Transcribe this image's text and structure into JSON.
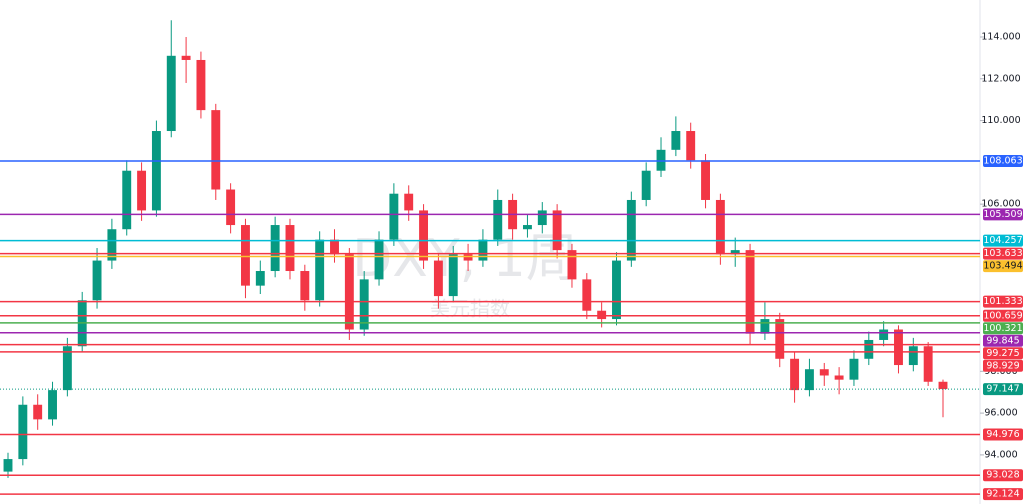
{
  "chart_data": {
    "type": "candlestick",
    "watermark": {
      "title": "DXY, 1周",
      "subtitle": "美元指数"
    },
    "up_color": "#089981",
    "down_color": "#f23645",
    "ylim": [
      91.65,
      115.77
    ],
    "yticks": [
      {
        "value": 114,
        "label": "114.000"
      },
      {
        "value": 112,
        "label": "112.000"
      },
      {
        "value": 110,
        "label": "110.000"
      },
      {
        "value": 106,
        "label": "106.000"
      },
      {
        "value": 98,
        "label": "98.000"
      },
      {
        "value": 96,
        "label": "96.000"
      },
      {
        "value": 94,
        "label": "94.000"
      }
    ],
    "open": [
      93.2,
      93.8,
      96.4,
      95.7,
      97.1,
      99.2,
      101.4,
      103.3,
      104.8,
      107.6,
      105.7,
      109.5,
      113.1,
      112.9,
      110.5,
      106.7,
      105.0,
      102.1,
      102.8,
      105.0,
      102.8,
      101.4,
      104.3,
      103.6,
      100.0,
      102.4,
      104.3,
      106.5,
      105.7,
      103.3,
      101.6,
      103.6,
      103.3,
      104.3,
      106.2,
      104.8,
      105.0,
      105.7,
      103.8,
      102.4,
      100.9,
      100.5,
      103.3,
      106.2,
      107.6,
      108.6,
      109.5,
      108.1,
      106.2,
      103.6,
      103.8,
      99.8,
      100.5,
      98.6,
      97.1,
      98.1,
      97.8,
      97.6,
      98.6,
      99.5,
      100.0,
      98.3,
      99.2,
      97.5
    ],
    "high": [
      94.1,
      96.8,
      96.9,
      97.5,
      99.6,
      101.8,
      103.9,
      105.3,
      108.1,
      108.0,
      110.0,
      114.8,
      114.0,
      113.3,
      110.8,
      107.0,
      105.3,
      103.3,
      105.4,
      105.3,
      103.1,
      104.7,
      104.8,
      103.9,
      102.8,
      104.7,
      107.0,
      106.9,
      106.0,
      103.6,
      104.0,
      104.1,
      104.8,
      106.7,
      106.5,
      105.5,
      106.1,
      106.0,
      104.1,
      102.7,
      101.3,
      103.7,
      106.6,
      108.0,
      109.2,
      110.2,
      109.9,
      108.4,
      106.5,
      104.4,
      104.1,
      101.3,
      100.8,
      98.9,
      98.6,
      98.4,
      98.2,
      99.0,
      99.9,
      100.4,
      100.2,
      99.6,
      99.4,
      97.6
    ],
    "low": [
      92.9,
      93.5,
      95.2,
      95.4,
      96.8,
      98.9,
      101.0,
      102.9,
      104.5,
      105.2,
      105.4,
      109.2,
      111.8,
      110.1,
      106.2,
      104.6,
      101.5,
      101.7,
      102.5,
      102.4,
      100.9,
      101.1,
      103.2,
      99.5,
      99.7,
      102.1,
      104.0,
      105.2,
      102.9,
      101.0,
      101.3,
      102.8,
      103.0,
      104.0,
      104.3,
      104.4,
      104.6,
      103.4,
      102.0,
      100.5,
      100.1,
      100.2,
      103.0,
      105.9,
      107.3,
      108.3,
      107.7,
      105.8,
      103.1,
      103.0,
      99.3,
      99.5,
      98.2,
      96.5,
      96.8,
      97.3,
      96.9,
      97.3,
      98.3,
      99.2,
      97.9,
      98.0,
      97.3,
      95.8
    ],
    "close": [
      93.8,
      96.4,
      95.7,
      97.1,
      99.2,
      101.4,
      103.3,
      104.8,
      107.6,
      105.7,
      109.5,
      113.1,
      112.9,
      110.5,
      106.7,
      105.0,
      102.1,
      102.8,
      105.0,
      102.8,
      101.4,
      104.3,
      103.6,
      100.0,
      102.4,
      104.3,
      106.5,
      105.7,
      103.3,
      101.6,
      103.6,
      103.3,
      104.3,
      106.2,
      104.8,
      105.0,
      105.7,
      103.8,
      102.4,
      100.9,
      100.5,
      103.3,
      106.2,
      107.6,
      108.6,
      109.5,
      108.1,
      106.2,
      103.6,
      103.8,
      99.8,
      100.5,
      98.6,
      97.1,
      98.1,
      97.8,
      97.6,
      98.6,
      99.5,
      100.0,
      98.3,
      99.2,
      97.5,
      97.15
    ],
    "levels": [
      {
        "value": 108.063,
        "color": "#2962ff"
      },
      {
        "value": 105.509,
        "color": "#9c27b0"
      },
      {
        "value": 104.257,
        "color": "#00bcd4"
      },
      {
        "value": 103.633,
        "color": "#f23645"
      },
      {
        "value": 103.494,
        "color": "#fbc02d"
      },
      {
        "value": 101.333,
        "color": "#f23645"
      },
      {
        "value": 100.659,
        "color": "#f23645"
      },
      {
        "value": 100.321,
        "color": "#4caf50"
      },
      {
        "value": 99.845,
        "color": "#9c27b0"
      },
      {
        "value": 99.275,
        "color": "#f23645"
      },
      {
        "value": 98.929,
        "color": "#f23645"
      },
      {
        "value": 97.147,
        "color": "#089981"
      },
      {
        "value": 94.976,
        "color": "#f23645"
      },
      {
        "value": 93.028,
        "color": "#f23645"
      },
      {
        "value": 92.124,
        "color": "#f23645"
      }
    ]
  }
}
